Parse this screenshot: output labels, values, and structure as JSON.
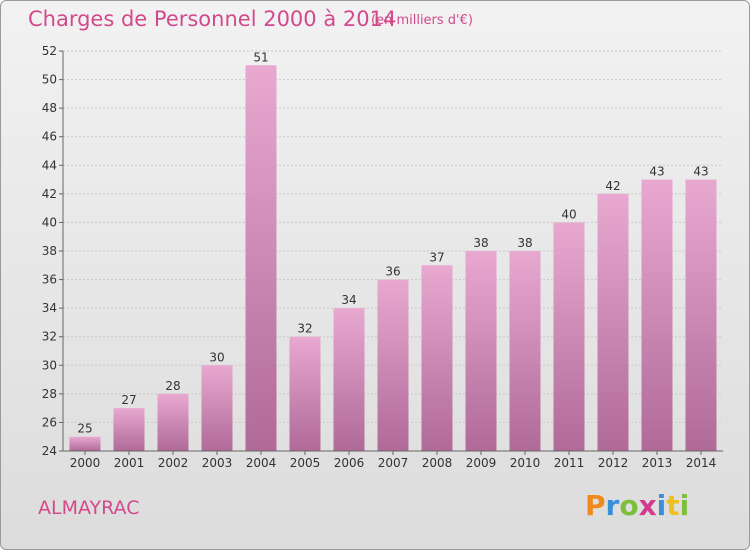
{
  "title": "Charges de Personnel 2000 à 2014",
  "subtitle": "(en milliers d'€)",
  "commune": "ALMAYRAC",
  "logo": {
    "letters": [
      "P",
      "r",
      "o",
      "x",
      "i",
      "t",
      "i"
    ],
    "colors": [
      "#f08a1c",
      "#3a8fd9",
      "#7bbf3a",
      "#d23a8c",
      "#3a8fd9",
      "#f0c01c",
      "#7bbf3a"
    ]
  },
  "colors": {
    "bar_top": "#e8a8d0",
    "bar_bottom": "#b06a98",
    "text": "#d24a8c"
  },
  "chart_data": {
    "type": "bar",
    "categories": [
      "2000",
      "2001",
      "2002",
      "2003",
      "2004",
      "2005",
      "2006",
      "2007",
      "2008",
      "2009",
      "2010",
      "2011",
      "2012",
      "2013",
      "2014"
    ],
    "values": [
      25,
      27,
      28,
      30,
      51,
      32,
      34,
      36,
      37,
      38,
      38,
      40,
      42,
      43,
      43
    ],
    "value_labels": [
      "25",
      "27",
      "28",
      "30",
      "51",
      "32",
      "34",
      "36",
      "37",
      "38",
      "38",
      "40",
      "42",
      "43",
      "43"
    ],
    "yticks": [
      "24",
      "26",
      "28",
      "30",
      "32",
      "34",
      "36",
      "38",
      "40",
      "42",
      "44",
      "46",
      "48",
      "50",
      "52"
    ],
    "ylim": [
      24,
      52
    ],
    "grid": true
  }
}
